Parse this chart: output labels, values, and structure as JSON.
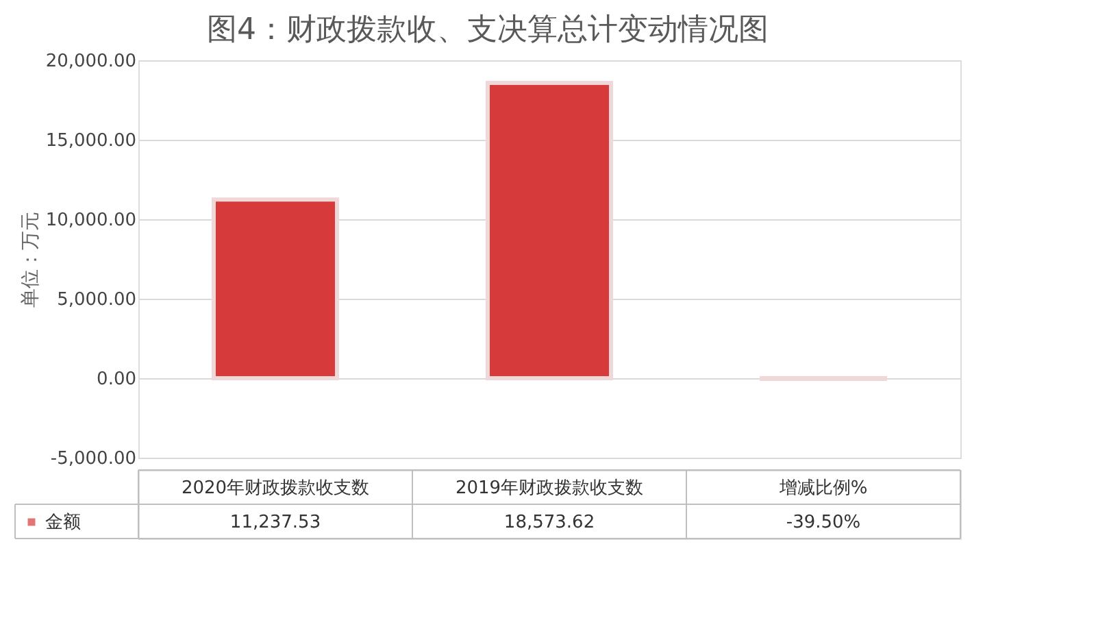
{
  "chart_data": {
    "type": "bar",
    "title": "图4：财政拨款收、支决算总计变动情况图",
    "ylabel": "单位：万元",
    "categories": [
      "2020年财政拨款收支数",
      "2019年财政拨款收支数",
      "增减比例%"
    ],
    "series": [
      {
        "name": "金额",
        "color": "#d63a3a",
        "values": [
          11237.53,
          18573.62,
          -39.5
        ],
        "value_labels": [
          "11,237.53",
          "18,573.62",
          "-39.50%"
        ]
      }
    ],
    "ylim": [
      -5000,
      20000
    ],
    "yticks": [
      {
        "value": -5000,
        "label": "-5,000.00"
      },
      {
        "value": 0,
        "label": "0.00"
      },
      {
        "value": 5000,
        "label": "5,000.00"
      },
      {
        "value": 10000,
        "label": "10,000.00"
      },
      {
        "value": 15000,
        "label": "15,000.00"
      },
      {
        "value": 20000,
        "label": "20,000.00"
      }
    ],
    "grid": "y",
    "legend": "bottom"
  }
}
